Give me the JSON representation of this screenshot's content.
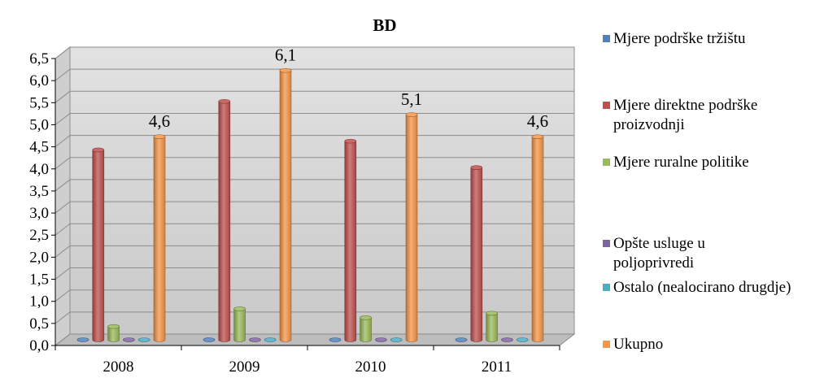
{
  "chart_data": {
    "type": "bar",
    "title": "BD",
    "xlabel": "",
    "ylabel": "",
    "categories": [
      "2008",
      "2009",
      "2010",
      "2011"
    ],
    "ylim": [
      0,
      6.5
    ],
    "yticks": [
      "0,0",
      "0,5",
      "1,0",
      "1,5",
      "2,0",
      "2,5",
      "3,0",
      "3,5",
      "4,0",
      "4,5",
      "5,0",
      "5,5",
      "6,0",
      "6,5"
    ],
    "grid": true,
    "legend_position": "right",
    "series": [
      {
        "name": "Mjere podrške tržištu",
        "color": "#4f81bd",
        "values": [
          0,
          0,
          0,
          0
        ]
      },
      {
        "name": "Mjere direktne podrške proizvodnji",
        "color": "#c0504d",
        "values": [
          4.3,
          5.4,
          4.5,
          3.9
        ]
      },
      {
        "name": "Mjere ruralne politike",
        "color": "#9bbb59",
        "values": [
          0.3,
          0.7,
          0.5,
          0.6
        ]
      },
      {
        "name": "Opšte usluge u poljoprivredi",
        "color": "#8064a2",
        "values": [
          0,
          0,
          0,
          0
        ]
      },
      {
        "name": "Ostalo (nealocirano drugdje)",
        "color": "#4bacc6",
        "values": [
          0,
          0,
          0,
          0
        ]
      },
      {
        "name": "Ukupno",
        "color": "#f79646",
        "values": [
          4.6,
          6.1,
          5.1,
          4.6
        ]
      }
    ],
    "data_labels": [
      {
        "series": "Ukupno",
        "category": "2008",
        "text": "4,6"
      },
      {
        "series": "Ukupno",
        "category": "2009",
        "text": "6,1"
      },
      {
        "series": "Ukupno",
        "category": "2010",
        "text": "5,1"
      },
      {
        "series": "Ukupno",
        "category": "2011",
        "text": "4,6"
      }
    ]
  },
  "legend": {
    "items": [
      {
        "label": "Mjere podrške tržištu",
        "color": "#4f81bd"
      },
      {
        "label": "Mjere direktne podrške proizvodnji",
        "color": "#c0504d"
      },
      {
        "label": "Mjere ruralne politike",
        "color": "#9bbb59"
      },
      {
        "label": "Opšte usluge u poljoprivredi",
        "color": "#8064a2"
      },
      {
        "label": "Ostalo (nealocirano drugdje)",
        "color": "#4bacc6"
      },
      {
        "label": "Ukupno",
        "color": "#f79646"
      }
    ]
  }
}
